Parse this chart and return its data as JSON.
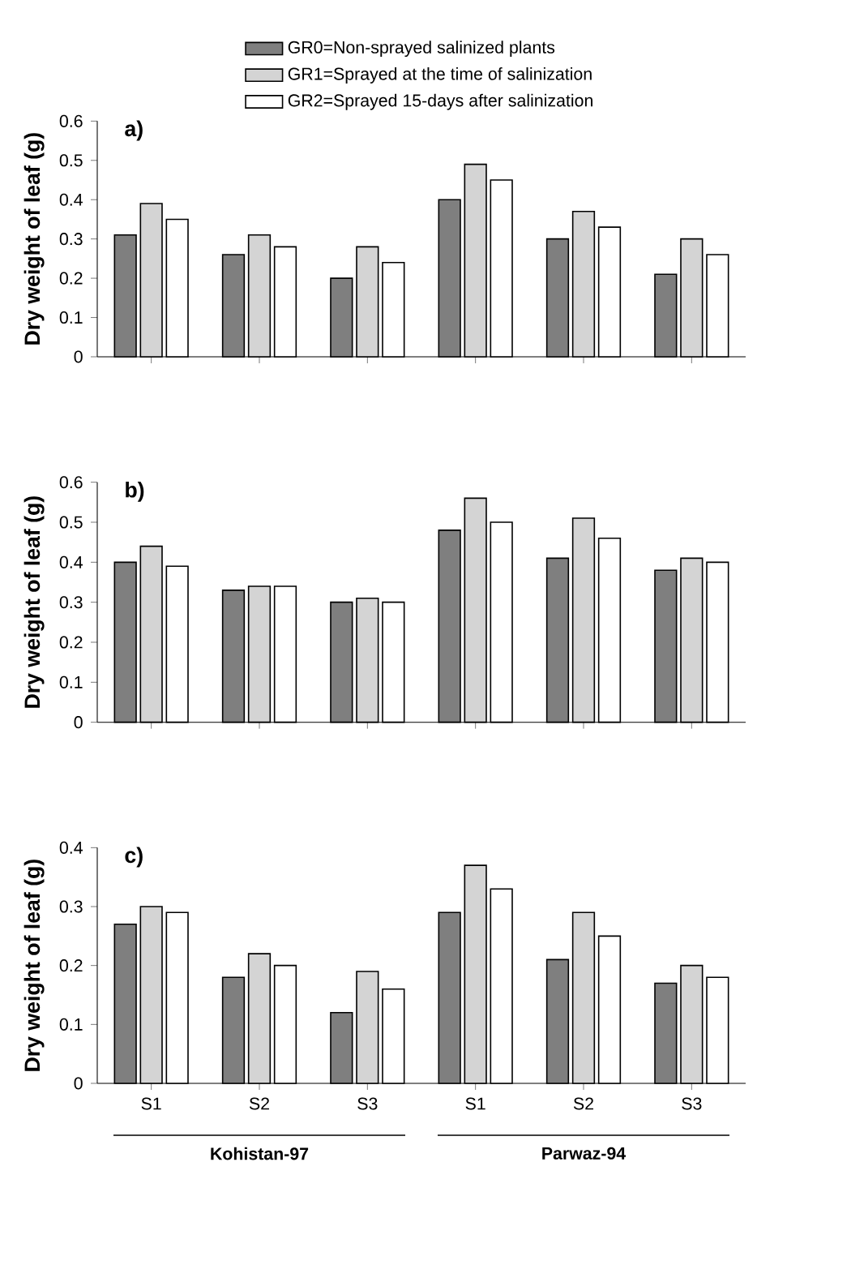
{
  "chart_data": [
    {
      "type": "bar",
      "title": "a)",
      "ylabel": "Dry weight of leaf (g)",
      "categories": [
        null,
        null,
        null,
        null,
        null,
        null
      ],
      "ylim": [
        0,
        0.6
      ],
      "yticks": [
        0,
        0.1,
        0.2,
        0.3,
        0.4,
        0.5,
        0.6
      ],
      "tick_labels": "y",
      "legend": "top",
      "series": [
        {
          "name": "GR0=Non-sprayed salinized plants",
          "color": "#7f7f7f",
          "values": [
            0.31,
            0.26,
            0.2,
            0.4,
            0.3,
            0.21
          ]
        },
        {
          "name": "GR1=Sprayed at the time of salinization",
          "color": "#d4d4d4",
          "values": [
            0.39,
            0.31,
            0.28,
            0.49,
            0.37,
            0.3
          ]
        },
        {
          "name": "GR2=Sprayed 15-days after salinization",
          "color": "#ffffff",
          "values": [
            0.35,
            0.28,
            0.24,
            0.45,
            0.33,
            0.26
          ]
        }
      ]
    },
    {
      "type": "bar",
      "title": "b)",
      "ylabel": "Dry weight of leaf (g)",
      "categories": [
        null,
        null,
        null,
        null,
        null,
        null
      ],
      "ylim": [
        0,
        0.6
      ],
      "yticks": [
        0,
        0.1,
        0.2,
        0.3,
        0.4,
        0.5,
        0.6
      ],
      "tick_labels": "y",
      "series": [
        {
          "color": "#7f7f7f",
          "values": [
            0.4,
            0.33,
            0.3,
            0.48,
            0.41,
            0.38
          ]
        },
        {
          "color": "#d4d4d4",
          "values": [
            0.44,
            0.34,
            0.31,
            0.56,
            0.51,
            0.41
          ]
        },
        {
          "color": "#ffffff",
          "values": [
            0.39,
            0.34,
            0.3,
            0.5,
            0.46,
            0.4
          ]
        }
      ]
    },
    {
      "type": "bar",
      "title": "c)",
      "ylabel": "Dry weight of leaf (g)",
      "categories": [
        "S1",
        "S2",
        "S3",
        "S1",
        "S2",
        "S3"
      ],
      "ylim": [
        0,
        0.4
      ],
      "yticks": [
        0,
        0.1,
        0.2,
        0.3,
        0.4
      ],
      "annotations": [
        "Kohistan-97",
        "Parwaz-94"
      ],
      "series": [
        {
          "color": "#7f7f7f",
          "values": [
            0.27,
            0.18,
            0.12,
            0.29,
            0.21,
            0.17
          ]
        },
        {
          "color": "#d4d4d4",
          "values": [
            0.3,
            0.22,
            0.19,
            0.37,
            0.29,
            0.2
          ]
        },
        {
          "color": "#ffffff",
          "values": [
            0.29,
            0.2,
            0.16,
            0.33,
            0.25,
            0.18
          ]
        }
      ]
    }
  ]
}
